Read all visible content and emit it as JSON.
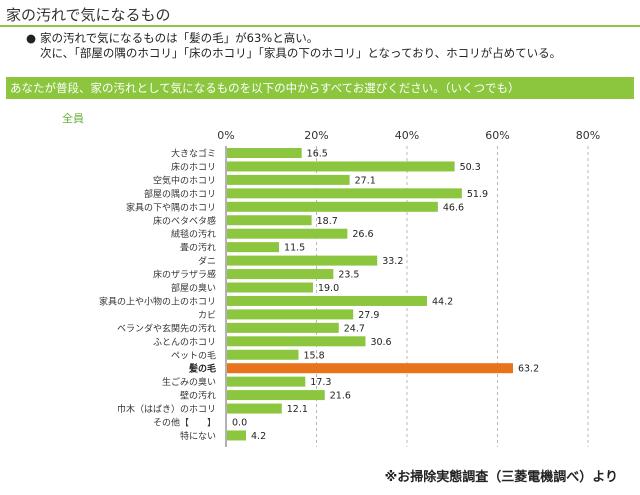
{
  "header": {
    "title": "家の汚れで気になるもの"
  },
  "summary": {
    "bullet": "●",
    "line1": "家の汚れで気になるものは「髪の毛」が63%と高い。",
    "line2": "次に、「部屋の隅のホコリ」「床のホコリ」「家具の下のホコリ」となっており、ホコリが占めている。"
  },
  "question": {
    "text": "あなたが普段、家の汚れとして気になるものを以下の中からすべてお選びください。（いくつでも）"
  },
  "panel": {
    "label": "全員"
  },
  "source": {
    "text": "※お掃除実態調査（三菱電機調べ）より"
  },
  "colors": {
    "accent": "#8cc63f",
    "bar": "#8cc63f",
    "highlight": "#e8731a",
    "grid": "#b8b8b8"
  },
  "chart_data": {
    "type": "bar",
    "orientation": "horizontal",
    "title": "全員",
    "xlim": [
      0,
      80
    ],
    "tick_values": [
      0,
      20,
      40,
      60,
      80
    ],
    "tick_labels": [
      "0%",
      "20%",
      "40%",
      "60%",
      "80%"
    ],
    "grid": true,
    "highlight_category": "髪の毛",
    "categories": [
      "大きなゴミ",
      "床のホコリ",
      "空気中のホコリ",
      "部屋の隅のホコリ",
      "家具の下や隅のホコリ",
      "床のベタベタ感",
      "絨毯の汚れ",
      "畳の汚れ",
      "ダニ",
      "床のザラザラ感",
      "部屋の臭い",
      "家具の上や小物の上のホコリ",
      "カビ",
      "ベランダや玄関先の汚れ",
      "ふとんのホコリ",
      "ペットの毛",
      "髪の毛",
      "生ごみの臭い",
      "壁の汚れ",
      "巾木（はばき）のホコリ",
      "その他【　　】",
      "特にない"
    ],
    "values": [
      16.5,
      50.3,
      27.1,
      51.9,
      46.6,
      18.7,
      26.6,
      11.5,
      33.2,
      23.5,
      19.0,
      44.2,
      27.9,
      24.7,
      30.6,
      15.8,
      63.2,
      17.3,
      21.6,
      12.1,
      0.0,
      4.2
    ],
    "value_labels": [
      "16.5",
      "50.3",
      "27.1",
      "51.9",
      "46.6",
      "18.7",
      "26.6",
      "11.5",
      "33.2",
      "23.5",
      "19.0",
      "44.2",
      "27.9",
      "24.7",
      "30.6",
      "15.8",
      "63.2",
      "17.3",
      "21.6",
      "12.1",
      "0.0",
      "4.2"
    ]
  }
}
